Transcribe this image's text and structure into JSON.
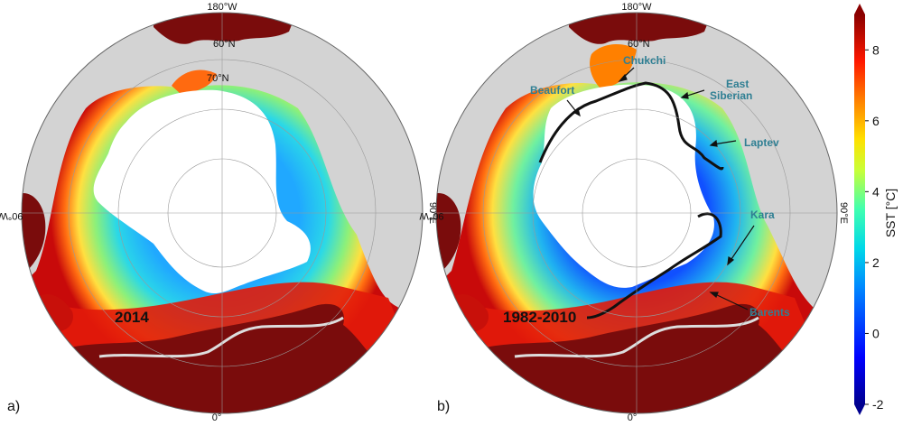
{
  "panels": [
    {
      "id": "a",
      "panel_label": "a)",
      "year_label": "2014",
      "grid_labels": {
        "top": "180°W",
        "lat60": "60°N",
        "lat70": "70°N",
        "left": "90°W",
        "right": "90°E",
        "bottom": "0°"
      }
    },
    {
      "id": "b",
      "panel_label": "b)",
      "year_label": "1982-2010",
      "grid_labels": {
        "top": "180°W",
        "lat60": "60°N",
        "left": "90°W",
        "right": "90°E",
        "bottom": "0°"
      },
      "sea_labels": {
        "chukchi": "Chukchi",
        "beaufort": "Beaufort",
        "east": "East",
        "siberian": "Siberian",
        "laptev": "Laptev",
        "kara": "Kara",
        "barents": "Barents"
      }
    }
  ],
  "colorbar": {
    "title": "SST [°C]",
    "ticks": [
      "8",
      "6",
      "4",
      "2",
      "0",
      "-2"
    ],
    "min": -2,
    "max": 9
  },
  "colors": {
    "land": "#7a0c0c",
    "ocean_gray": "#d3d3d3",
    "ice": "#ffffff",
    "sea_label": "#2f7f93",
    "ice_edge": "#111111",
    "current_line": "#dddddd"
  }
}
